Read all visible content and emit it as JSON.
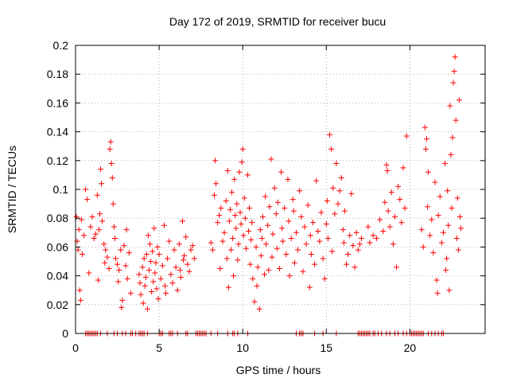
{
  "chart_data": {
    "type": "scatter",
    "title": "Day 172 of 2019, SRMTID for receiver bucu",
    "xlabel": "GPS time / hours",
    "ylabel": "SRMTID / TECUs",
    "xlim": [
      0,
      24.5
    ],
    "ylim": [
      0,
      0.2
    ],
    "grid": true,
    "marker": "plus",
    "color": "#ff0000",
    "x_ticks": [
      {
        "value": 0,
        "label": "0"
      },
      {
        "value": 5,
        "label": "5"
      },
      {
        "value": 10,
        "label": "10"
      },
      {
        "value": 15,
        "label": "15"
      },
      {
        "value": 20,
        "label": "20"
      }
    ],
    "y_ticks": [
      {
        "value": 0,
        "label": "0"
      },
      {
        "value": 0.02,
        "label": "0.02"
      },
      {
        "value": 0.04,
        "label": "0.04"
      },
      {
        "value": 0.06,
        "label": "0.06"
      },
      {
        "value": 0.08,
        "label": "0.08"
      },
      {
        "value": 0.1,
        "label": "0.1"
      },
      {
        "value": 0.12,
        "label": "0.12"
      },
      {
        "value": 0.14,
        "label": "0.14"
      },
      {
        "value": 0.16,
        "label": "0.16"
      },
      {
        "value": 0.18,
        "label": "0.18"
      },
      {
        "value": 0.2,
        "label": "0.2"
      }
    ],
    "series": [
      {
        "name": "SRMTID",
        "points": [
          [
            0.05,
            0.081
          ],
          [
            0.1,
            0.064
          ],
          [
            0.15,
            0.058
          ],
          [
            0.2,
            0.072
          ],
          [
            0.25,
            0.03
          ],
          [
            0.3,
            0.023
          ],
          [
            0.35,
            0.079
          ],
          [
            0.4,
            0.055
          ],
          [
            0.5,
            0.068
          ],
          [
            0.6,
            0.1
          ],
          [
            0.7,
            0.093
          ],
          [
            0.8,
            0.042
          ],
          [
            0.9,
            0.074
          ],
          [
            1.0,
            0.081
          ],
          [
            1.1,
            0.066
          ],
          [
            1.2,
            0.069
          ],
          [
            1.3,
            0.096
          ],
          [
            1.35,
            0.037
          ],
          [
            1.4,
            0.072
          ],
          [
            1.45,
            0.083
          ],
          [
            1.5,
            0.114
          ],
          [
            1.55,
            0.104
          ],
          [
            1.6,
            0.078
          ],
          [
            1.7,
            0.062
          ],
          [
            1.75,
            0.049
          ],
          [
            1.8,
            0.058
          ],
          [
            1.9,
            0.053
          ],
          [
            2.0,
            0.045
          ],
          [
            2.05,
            0.128
          ],
          [
            2.1,
            0.133
          ],
          [
            2.15,
            0.118
          ],
          [
            2.2,
            0.108
          ],
          [
            2.25,
            0.09
          ],
          [
            2.3,
            0.074
          ],
          [
            2.35,
            0.066
          ],
          [
            2.4,
            0.052
          ],
          [
            2.5,
            0.048
          ],
          [
            2.55,
            0.036
          ],
          [
            2.6,
            0.044
          ],
          [
            2.7,
            0.058
          ],
          [
            2.75,
            0.018
          ],
          [
            2.8,
            0.023
          ],
          [
            2.9,
            0.061
          ],
          [
            3.0,
            0.047
          ],
          [
            3.05,
            0.072
          ],
          [
            3.1,
            0.038
          ],
          [
            3.2,
            0.056
          ],
          [
            3.3,
            0.028
          ],
          [
            3.8,
            0.041
          ],
          [
            3.85,
            0.035
          ],
          [
            3.9,
            0.027
          ],
          [
            4.0,
            0.046
          ],
          [
            4.05,
            0.021
          ],
          [
            4.1,
            0.052
          ],
          [
            4.15,
            0.033
          ],
          [
            4.2,
            0.039
          ],
          [
            4.25,
            0.055
          ],
          [
            4.3,
            0.017
          ],
          [
            4.35,
            0.068
          ],
          [
            4.4,
            0.044
          ],
          [
            4.45,
            0.062
          ],
          [
            4.5,
            0.05
          ],
          [
            4.55,
            0.029
          ],
          [
            4.6,
            0.057
          ],
          [
            4.65,
            0.036
          ],
          [
            4.7,
            0.073
          ],
          [
            4.75,
            0.042
          ],
          [
            4.8,
            0.049
          ],
          [
            4.85,
            0.031
          ],
          [
            4.9,
            0.06
          ],
          [
            4.95,
            0.024
          ],
          [
            5.0,
            0.055
          ],
          [
            5.1,
            0.038
          ],
          [
            5.2,
            0.047
          ],
          [
            5.3,
            0.075
          ],
          [
            5.35,
            0.033
          ],
          [
            5.4,
            0.028
          ],
          [
            5.5,
            0.052
          ],
          [
            5.6,
            0.064
          ],
          [
            5.7,
            0.041
          ],
          [
            5.8,
            0.035
          ],
          [
            5.9,
            0.058
          ],
          [
            6.0,
            0.046
          ],
          [
            6.1,
            0.03
          ],
          [
            6.2,
            0.062
          ],
          [
            6.25,
            0.044
          ],
          [
            6.3,
            0.039
          ],
          [
            6.4,
            0.078
          ],
          [
            6.45,
            0.051
          ],
          [
            6.5,
            0.054
          ],
          [
            6.6,
            0.067
          ],
          [
            6.7,
            0.048
          ],
          [
            6.8,
            0.043
          ],
          [
            6.9,
            0.058
          ],
          [
            7.0,
            0.061
          ],
          [
            7.1,
            0.052
          ],
          [
            8.1,
            0.063
          ],
          [
            8.2,
            0.058
          ],
          [
            8.3,
            0.096
          ],
          [
            8.35,
            0.12
          ],
          [
            8.4,
            0.104
          ],
          [
            8.5,
            0.077
          ],
          [
            8.6,
            0.082
          ],
          [
            8.65,
            0.045
          ],
          [
            8.7,
            0.087
          ],
          [
            8.8,
            0.064
          ],
          [
            8.9,
            0.07
          ],
          [
            9.0,
            0.092
          ],
          [
            9.05,
            0.052
          ],
          [
            9.1,
            0.113
          ],
          [
            9.15,
            0.032
          ],
          [
            9.2,
            0.078
          ],
          [
            9.25,
            0.086
          ],
          [
            9.3,
            0.058
          ],
          [
            9.35,
            0.098
          ],
          [
            9.4,
            0.066
          ],
          [
            9.45,
            0.04
          ],
          [
            9.5,
            0.107
          ],
          [
            9.55,
            0.082
          ],
          [
            9.6,
            0.073
          ],
          [
            9.65,
            0.09
          ],
          [
            9.7,
            0.051
          ],
          [
            9.75,
            0.062
          ],
          [
            9.8,
            0.112
          ],
          [
            9.85,
            0.084
          ],
          [
            9.9,
            0.076
          ],
          [
            9.95,
            0.119
          ],
          [
            10.0,
            0.128
          ],
          [
            10.05,
            0.068
          ],
          [
            10.1,
            0.094
          ],
          [
            10.15,
            0.08
          ],
          [
            10.2,
            0.059
          ],
          [
            10.3,
            0.11
          ],
          [
            10.35,
            0.071
          ],
          [
            10.4,
            0.087
          ],
          [
            10.45,
            0.048
          ],
          [
            10.5,
            0.065
          ],
          [
            10.55,
            0.077
          ],
          [
            10.6,
            0.038
          ],
          [
            10.7,
            0.022
          ],
          [
            10.8,
            0.06
          ],
          [
            10.85,
            0.033
          ],
          [
            10.9,
            0.046
          ],
          [
            11.0,
            0.017
          ],
          [
            11.05,
            0.072
          ],
          [
            11.1,
            0.054
          ],
          [
            11.15,
            0.066
          ],
          [
            11.2,
            0.081
          ],
          [
            11.3,
            0.041
          ],
          [
            11.35,
            0.095
          ],
          [
            11.4,
            0.062
          ],
          [
            11.5,
            0.075
          ],
          [
            11.55,
            0.044
          ],
          [
            11.6,
            0.088
          ],
          [
            11.7,
            0.121
          ],
          [
            11.75,
            0.053
          ],
          [
            11.8,
            0.069
          ],
          [
            11.9,
            0.101
          ],
          [
            12.0,
            0.083
          ],
          [
            12.05,
            0.059
          ],
          [
            12.1,
            0.091
          ],
          [
            12.2,
            0.045
          ],
          [
            12.3,
            0.112
          ],
          [
            12.35,
            0.073
          ],
          [
            12.4,
            0.064
          ],
          [
            12.5,
            0.087
          ],
          [
            12.6,
            0.055
          ],
          [
            12.7,
            0.107
          ],
          [
            12.75,
            0.078
          ],
          [
            12.8,
            0.04
          ],
          [
            12.9,
            0.066
          ],
          [
            13.0,
            0.093
          ],
          [
            13.05,
            0.085
          ],
          [
            13.1,
            0.049
          ],
          [
            13.2,
            0.07
          ],
          [
            13.3,
            0.058
          ],
          [
            13.4,
            0.099
          ],
          [
            13.5,
            0.081
          ],
          [
            13.6,
            0.043
          ],
          [
            13.7,
            0.074
          ],
          [
            13.8,
            0.062
          ],
          [
            13.9,
            0.089
          ],
          [
            14.0,
            0.032
          ],
          [
            14.05,
            0.068
          ],
          [
            14.1,
            0.055
          ],
          [
            14.2,
            0.077
          ],
          [
            14.3,
            0.048
          ],
          [
            14.4,
            0.106
          ],
          [
            14.5,
            0.071
          ],
          [
            14.6,
            0.064
          ],
          [
            14.7,
            0.084
          ],
          [
            14.8,
            0.052
          ],
          [
            14.9,
            0.038
          ],
          [
            15.0,
            0.076
          ],
          [
            15.05,
            0.092
          ],
          [
            15.1,
            0.066
          ],
          [
            15.2,
            0.138
          ],
          [
            15.3,
            0.128
          ],
          [
            15.35,
            0.057
          ],
          [
            15.4,
            0.101
          ],
          [
            15.5,
            0.083
          ],
          [
            15.6,
            0.118
          ],
          [
            15.7,
            0.09
          ],
          [
            15.8,
            0.099
          ],
          [
            15.9,
            0.108
          ],
          [
            16.0,
            0.072
          ],
          [
            16.05,
            0.063
          ],
          [
            16.1,
            0.085
          ],
          [
            16.2,
            0.048
          ],
          [
            16.3,
            0.055
          ],
          [
            16.4,
            0.068
          ],
          [
            16.5,
            0.097
          ],
          [
            16.6,
            0.061
          ],
          [
            16.7,
            0.046
          ],
          [
            16.8,
            0.07
          ],
          [
            16.9,
            0.058
          ],
          [
            17.0,
            0.062
          ],
          [
            17.1,
            0.066
          ],
          [
            17.5,
            0.074
          ],
          [
            17.6,
            0.063
          ],
          [
            17.8,
            0.068
          ],
          [
            18.0,
            0.066
          ],
          [
            18.2,
            0.079
          ],
          [
            18.4,
            0.071
          ],
          [
            18.5,
            0.091
          ],
          [
            18.6,
            0.117
          ],
          [
            18.65,
            0.113
          ],
          [
            18.7,
            0.085
          ],
          [
            18.8,
            0.074
          ],
          [
            18.9,
            0.098
          ],
          [
            19.0,
            0.062
          ],
          [
            19.1,
            0.081
          ],
          [
            19.2,
            0.046
          ],
          [
            19.3,
            0.102
          ],
          [
            19.4,
            0.093
          ],
          [
            19.5,
            0.077
          ],
          [
            19.6,
            0.115
          ],
          [
            19.7,
            0.087
          ],
          [
            19.8,
            0.137
          ],
          [
            20.7,
            0.072
          ],
          [
            20.8,
            0.06
          ],
          [
            20.9,
            0.143
          ],
          [
            20.95,
            0.128
          ],
          [
            21.0,
            0.135
          ],
          [
            21.05,
            0.088
          ],
          [
            21.1,
            0.112
          ],
          [
            21.2,
            0.068
          ],
          [
            21.3,
            0.079
          ],
          [
            21.4,
            0.056
          ],
          [
            21.5,
            0.105
          ],
          [
            21.6,
            0.037
          ],
          [
            21.65,
            0.028
          ],
          [
            21.7,
            0.082
          ],
          [
            21.8,
            0.095
          ],
          [
            21.9,
            0.063
          ],
          [
            22.0,
            0.07
          ],
          [
            22.1,
            0.118
          ],
          [
            22.15,
            0.044
          ],
          [
            22.2,
            0.052
          ],
          [
            22.25,
            0.099
          ],
          [
            22.3,
            0.075
          ],
          [
            22.35,
            0.03
          ],
          [
            22.4,
            0.158
          ],
          [
            22.45,
            0.124
          ],
          [
            22.5,
            0.087
          ],
          [
            22.55,
            0.136
          ],
          [
            22.6,
            0.174
          ],
          [
            22.65,
            0.182
          ],
          [
            22.7,
            0.192
          ],
          [
            22.75,
            0.148
          ],
          [
            22.8,
            0.066
          ],
          [
            22.85,
            0.094
          ],
          [
            22.9,
            0.058
          ],
          [
            22.95,
            0.162
          ],
          [
            23.0,
            0.081
          ],
          [
            23.05,
            0.073
          ]
        ],
        "zero_points": [
          0.6,
          0.7,
          0.8,
          0.9,
          1.0,
          1.1,
          1.2,
          1.3,
          1.5,
          1.9,
          2.3,
          2.5,
          2.8,
          3.0,
          3.3,
          3.4,
          3.6,
          3.8,
          3.9,
          4.0,
          4.1,
          4.3,
          5.0,
          5.1,
          5.2,
          5.6,
          5.7,
          5.8,
          6.1,
          6.6,
          6.7,
          7.2,
          7.3,
          7.4,
          7.5,
          7.6,
          7.7,
          7.8,
          8.1,
          8.5,
          9.1,
          9.4,
          9.5,
          9.7,
          10.3,
          13.2,
          13.4,
          13.5,
          13.6,
          14.3,
          14.8,
          15.6,
          16.9,
          17.0,
          17.1,
          17.2,
          17.3,
          17.4,
          17.5,
          17.6,
          17.8,
          17.9,
          18.1,
          18.3,
          18.6,
          18.8,
          19.1,
          19.3,
          19.6,
          19.8,
          20.0,
          20.1,
          20.2,
          20.3,
          20.4,
          20.5,
          20.6,
          20.7,
          20.8,
          21.1,
          21.3,
          21.5,
          21.7,
          21.9,
          22.0
        ]
      }
    ]
  }
}
